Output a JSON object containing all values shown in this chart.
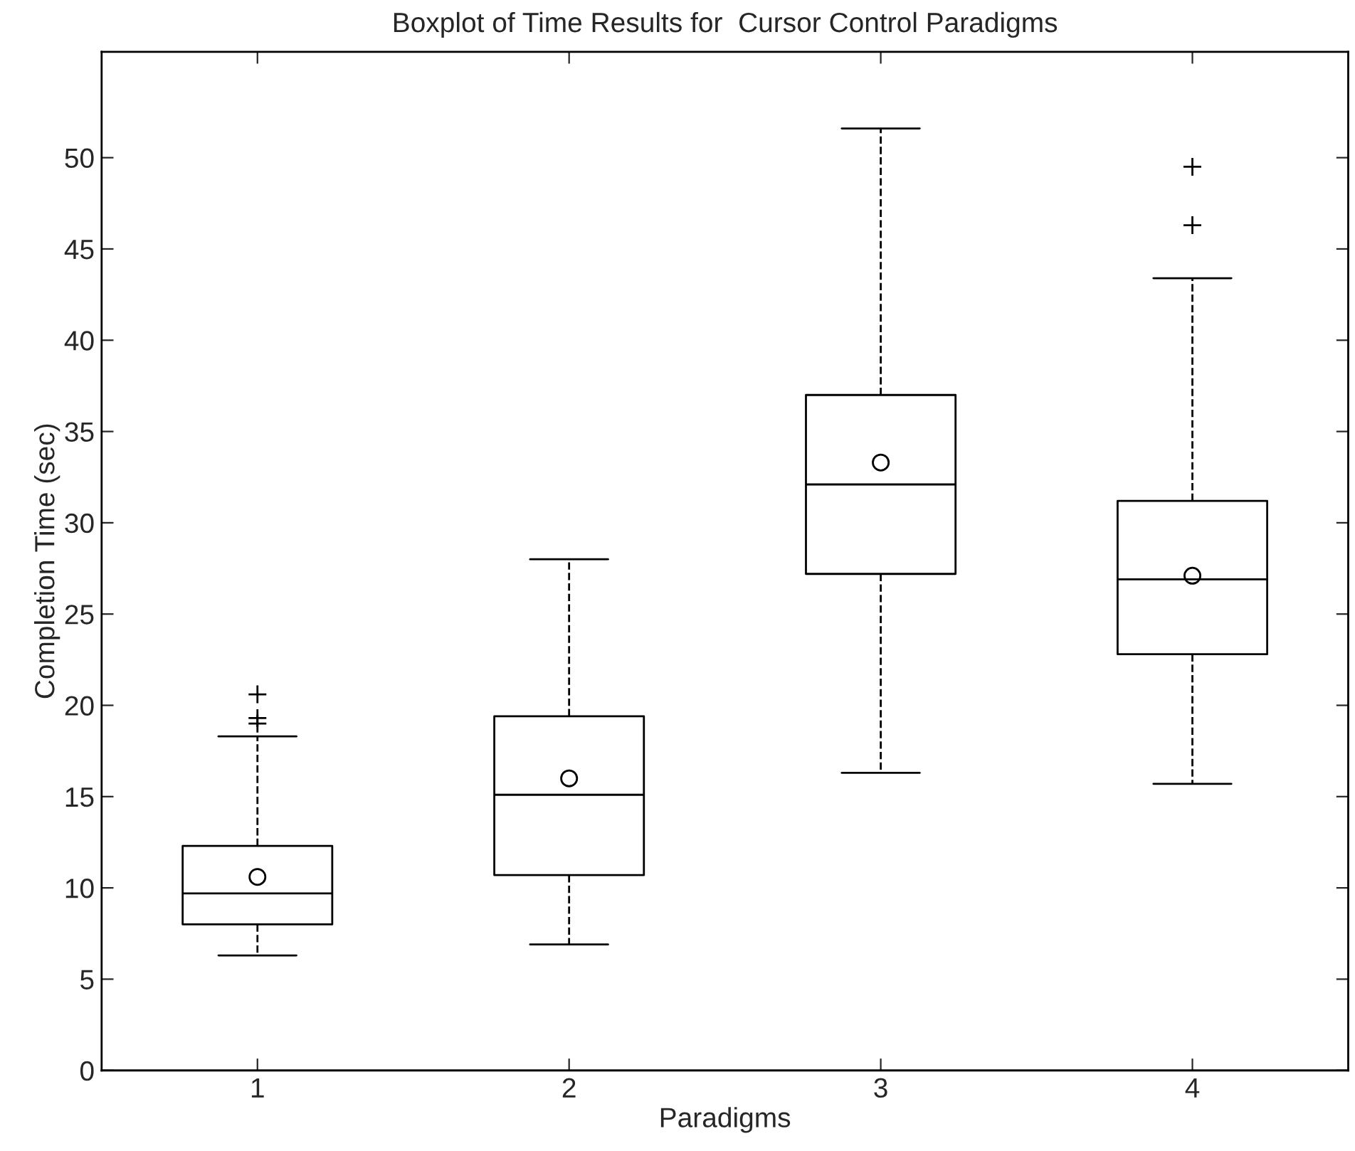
{
  "chart_data": {
    "type": "box",
    "title": "Boxplot of Time Results for  Cursor Control Paradigms",
    "xlabel": "Paradigms",
    "ylabel": "Completion Time (sec)",
    "categories": [
      "1",
      "2",
      "3",
      "4"
    ],
    "boxes": [
      {
        "low": 6.3,
        "q1": 8.0,
        "median": 9.7,
        "q3": 12.3,
        "high": 18.3,
        "mean": 10.6,
        "outliers": [
          19.0,
          19.3,
          20.6
        ]
      },
      {
        "low": 6.9,
        "q1": 10.7,
        "median": 15.1,
        "q3": 19.4,
        "high": 28.0,
        "mean": 16.0
      },
      {
        "low": 16.3,
        "q1": 27.2,
        "median": 32.1,
        "q3": 37.0,
        "high": 51.6,
        "mean": 33.3
      },
      {
        "low": 15.7,
        "q1": 22.8,
        "median": 26.9,
        "q3": 31.2,
        "high": 43.4,
        "mean": 27.1,
        "outliers": [
          46.3,
          49.5
        ]
      }
    ],
    "ylim": [
      0,
      55.8
    ],
    "yticks": [
      0,
      5,
      10,
      15,
      20,
      25,
      30,
      35,
      40,
      45,
      50
    ],
    "grid": false,
    "line_style": "dashed"
  }
}
